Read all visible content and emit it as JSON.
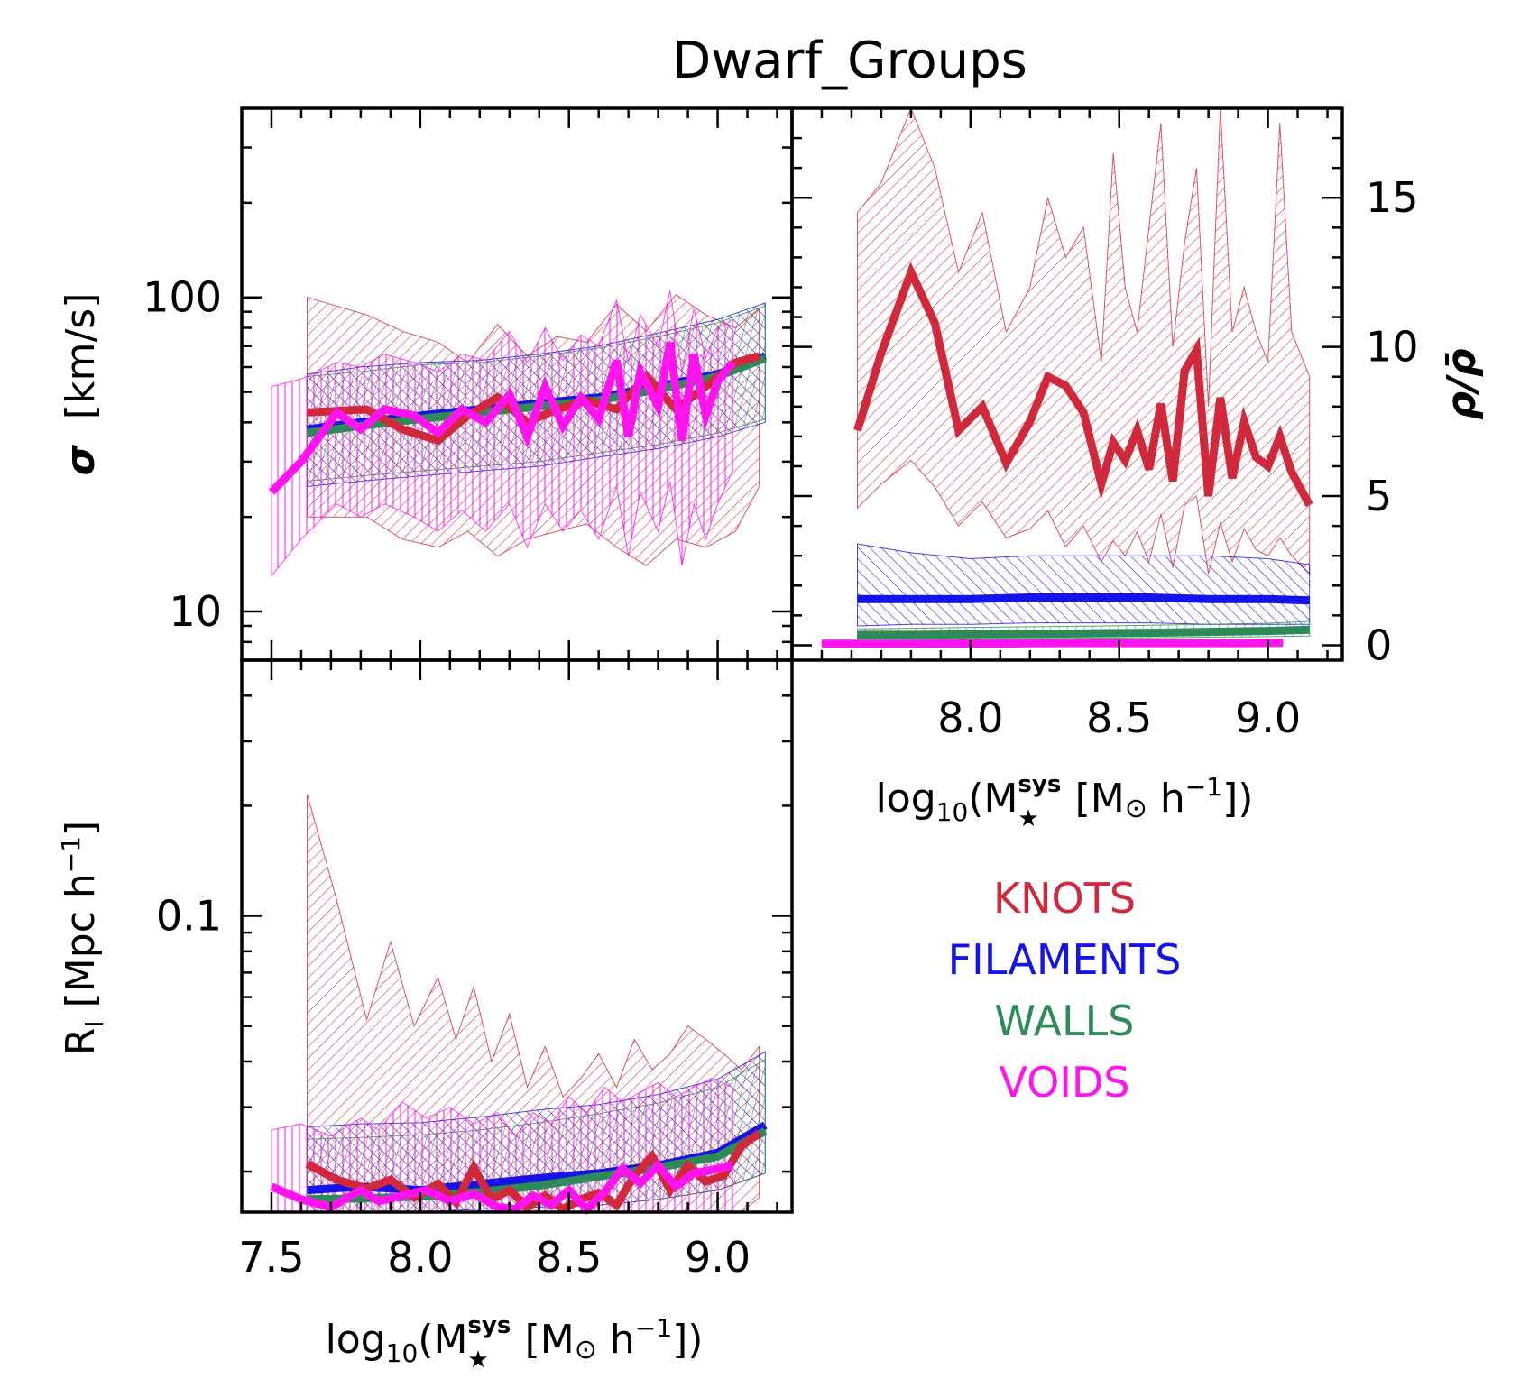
{
  "figure": {
    "title": "Dwarf_Groups",
    "x_axis_label": {
      "main": "log",
      "sub": "10",
      "open": "(M",
      "sup": "sys",
      "star": "★",
      "unit_open": "[M",
      "sun": "⊙",
      "unit_h": " h",
      "unit_exp": "−1",
      "close": "])"
    },
    "y_label_sigma": {
      "symbol": "σ",
      "unit": "[km/s]"
    },
    "y_label_rho": "ρ/ρ̄",
    "y_label_radius": {
      "main": "R",
      "sub": "I",
      "unit": "[Mpc h",
      "exp": "−1",
      "close": "]"
    }
  },
  "legend": [
    {
      "key": "knots",
      "label": "KNOTS",
      "color": "#d2283c"
    },
    {
      "key": "filaments",
      "label": "FILAMENTS",
      "color": "#1414e6"
    },
    {
      "key": "walls",
      "label": "WALLS",
      "color": "#2e8b57"
    },
    {
      "key": "voids",
      "label": "VOIDS",
      "color": "#ff14f0"
    }
  ],
  "chart_data": [
    {
      "id": "sigma",
      "type": "line",
      "yscale": "log",
      "xlim": [
        7.4,
        9.25
      ],
      "ylim": [
        7.0,
        400
      ],
      "yticks": [
        {
          "v": 10,
          "label": "10"
        },
        {
          "v": 100,
          "label": "100"
        }
      ],
      "xticks": [
        7.5,
        8.0,
        8.5,
        9.0
      ],
      "xlabel": "log10(M★sys [M⊙ h−1])",
      "ylabel": "σ [km/s]",
      "series": [
        {
          "name": "KNOTS",
          "x": [
            7.62,
            7.82,
            7.94,
            8.06,
            8.16,
            8.26,
            8.36,
            8.46,
            8.56,
            8.66,
            8.76,
            8.86,
            8.96,
            9.06,
            9.14
          ],
          "y": [
            43,
            44,
            38,
            35,
            42,
            48,
            40,
            44,
            47,
            44,
            56,
            44,
            52,
            62,
            65
          ],
          "lo": [
            20,
            20,
            17,
            16,
            18,
            15,
            17,
            18,
            19,
            16,
            14,
            17,
            16,
            18,
            25
          ],
          "hi": [
            100,
            88,
            78,
            72,
            62,
            82,
            65,
            75,
            72,
            95,
            78,
            102,
            88,
            80,
            92
          ]
        },
        {
          "name": "FILAMENTS",
          "x": [
            7.62,
            7.8,
            8.0,
            8.2,
            8.4,
            8.6,
            8.8,
            9.0,
            9.16
          ],
          "y": [
            38,
            40,
            42,
            44,
            46,
            48,
            52,
            57,
            65
          ],
          "lo": [
            25,
            26,
            27,
            28,
            29,
            31,
            33,
            36,
            40
          ],
          "hi": [
            57,
            60,
            62,
            63,
            66,
            70,
            77,
            85,
            96
          ]
        },
        {
          "name": "WALLS",
          "x": [
            7.62,
            7.8,
            8.0,
            8.2,
            8.4,
            8.6,
            8.8,
            9.0,
            9.16
          ],
          "y": [
            37,
            39,
            41,
            43,
            45,
            47,
            51,
            56,
            64
          ],
          "lo": [
            26,
            27,
            28,
            29,
            30,
            32,
            34,
            37,
            41
          ],
          "hi": [
            56,
            58,
            61,
            62,
            65,
            69,
            75,
            83,
            94
          ]
        },
        {
          "name": "VOIDS",
          "x": [
            7.5,
            7.6,
            7.72,
            7.8,
            7.88,
            7.98,
            8.06,
            8.14,
            8.22,
            8.3,
            8.36,
            8.42,
            8.48,
            8.54,
            8.6,
            8.66,
            8.7,
            8.74,
            8.8,
            8.84,
            8.88,
            8.92,
            8.96,
            9.0,
            9.05
          ],
          "y": [
            24,
            30,
            43,
            38,
            44,
            42,
            37,
            44,
            40,
            49,
            36,
            52,
            39,
            48,
            41,
            63,
            36,
            58,
            45,
            72,
            35,
            66,
            42,
            54,
            62
          ],
          "lo": [
            13,
            17,
            22,
            20,
            22,
            20,
            18,
            21,
            18,
            22,
            16,
            22,
            18,
            21,
            17,
            25,
            15,
            24,
            18,
            26,
            14,
            22,
            17,
            22,
            28
          ],
          "hi": [
            52,
            55,
            62,
            60,
            66,
            62,
            58,
            66,
            63,
            78,
            62,
            80,
            63,
            76,
            70,
            98,
            62,
            88,
            70,
            105,
            58,
            92,
            64,
            80,
            85
          ]
        }
      ]
    },
    {
      "id": "density",
      "type": "line",
      "yscale": "linear",
      "xlim": [
        7.4,
        9.25
      ],
      "ylim": [
        -0.5,
        18
      ],
      "yticks": [
        {
          "v": 0,
          "label": "0"
        },
        {
          "v": 5,
          "label": "5"
        },
        {
          "v": 10,
          "label": "10"
        },
        {
          "v": 15,
          "label": "15"
        }
      ],
      "xticks": [
        {
          "v": 8.0,
          "label": "8.0"
        },
        {
          "v": 8.5,
          "label": "8.5"
        },
        {
          "v": 9.0,
          "label": "9.0"
        }
      ],
      "xlabel": "log10(M★sys [M⊙ h−1])",
      "ylabel": "ρ/ρ̄",
      "series": [
        {
          "name": "KNOTS",
          "x": [
            7.62,
            7.7,
            7.8,
            7.88,
            7.96,
            8.04,
            8.12,
            8.2,
            8.26,
            8.32,
            8.38,
            8.44,
            8.48,
            8.52,
            8.56,
            8.6,
            8.64,
            8.68,
            8.72,
            8.76,
            8.8,
            8.84,
            8.88,
            8.92,
            8.96,
            9.0,
            9.04,
            9.08,
            9.14
          ],
          "y": [
            7.2,
            9.8,
            12.5,
            10.8,
            7.2,
            8.0,
            6.1,
            7.5,
            9.0,
            8.7,
            7.8,
            5.4,
            6.8,
            6.2,
            7.2,
            5.9,
            8.1,
            5.5,
            9.2,
            9.9,
            5.0,
            8.3,
            5.6,
            7.5,
            6.3,
            6.0,
            7.0,
            5.8,
            4.7
          ],
          "lo": [
            4.6,
            5.4,
            6.2,
            5.3,
            4.0,
            4.8,
            3.6,
            3.9,
            4.5,
            3.3,
            4.0,
            2.8,
            3.5,
            3.0,
            3.8,
            2.8,
            4.4,
            2.6,
            4.7,
            5.0,
            2.4,
            4.1,
            2.8,
            3.9,
            3.2,
            3.0,
            3.6,
            3.0,
            2.4
          ],
          "hi": [
            14.5,
            15.5,
            18.0,
            16.0,
            12.5,
            14.5,
            10.5,
            12.0,
            15.0,
            13.0,
            14.0,
            9.5,
            16.5,
            12.0,
            10.5,
            14.0,
            17.5,
            10.0,
            13.5,
            16.0,
            8.0,
            18.0,
            10.5,
            12.0,
            10.5,
            9.5,
            17.5,
            10.5,
            9.0
          ]
        },
        {
          "name": "FILAMENTS",
          "x": [
            7.62,
            7.8,
            8.0,
            8.2,
            8.4,
            8.6,
            8.8,
            9.0,
            9.14
          ],
          "y": [
            1.55,
            1.55,
            1.55,
            1.6,
            1.6,
            1.6,
            1.55,
            1.55,
            1.5
          ],
          "lo": [
            0.65,
            0.7,
            0.7,
            0.75,
            0.75,
            0.75,
            0.7,
            0.7,
            0.7
          ],
          "hi": [
            3.4,
            3.1,
            2.9,
            3.0,
            3.0,
            3.0,
            3.0,
            2.9,
            2.7
          ]
        },
        {
          "name": "WALLS",
          "x": [
            7.62,
            7.8,
            8.0,
            8.2,
            8.4,
            8.6,
            8.8,
            9.0,
            9.14
          ],
          "y": [
            0.35,
            0.35,
            0.37,
            0.38,
            0.4,
            0.42,
            0.45,
            0.48,
            0.52
          ],
          "lo": [
            0.2,
            0.2,
            0.22,
            0.22,
            0.24,
            0.25,
            0.27,
            0.29,
            0.31
          ],
          "hi": [
            0.55,
            0.57,
            0.6,
            0.62,
            0.64,
            0.67,
            0.7,
            0.74,
            0.8
          ]
        },
        {
          "name": "VOIDS",
          "x": [
            7.5,
            7.7,
            7.9,
            8.1,
            8.3,
            8.5,
            8.7,
            8.9,
            9.05
          ],
          "y": [
            0.05,
            0.05,
            0.06,
            0.06,
            0.07,
            0.07,
            0.07,
            0.07,
            0.08
          ],
          "lo": [
            0.02,
            0.02,
            0.02,
            0.03,
            0.03,
            0.03,
            0.03,
            0.03,
            0.04
          ],
          "hi": [
            0.09,
            0.09,
            0.1,
            0.1,
            0.11,
            0.11,
            0.11,
            0.12,
            0.12
          ]
        }
      ]
    },
    {
      "id": "radius",
      "type": "line",
      "yscale": "log",
      "xlim": [
        7.4,
        9.25
      ],
      "ylim": [
        0.0155,
        0.5
      ],
      "yticks": [
        {
          "v": 0.1,
          "label": "0.1"
        }
      ],
      "xticks": [
        {
          "v": 7.5,
          "label": "7.5"
        },
        {
          "v": 8.0,
          "label": "8.0"
        },
        {
          "v": 8.5,
          "label": "8.5"
        },
        {
          "v": 9.0,
          "label": "9.0"
        }
      ],
      "xlabel": "log10(M★sys [M⊙ h−1])",
      "ylabel": "RI [Mpc h−1]",
      "series": [
        {
          "name": "KNOTS",
          "x": [
            7.62,
            7.72,
            7.82,
            7.9,
            7.98,
            8.06,
            8.12,
            8.18,
            8.24,
            8.3,
            8.36,
            8.42,
            8.48,
            8.54,
            8.6,
            8.66,
            8.72,
            8.78,
            8.84,
            8.9,
            8.96,
            9.02,
            9.08,
            9.14
          ],
          "y": [
            0.021,
            0.019,
            0.018,
            0.019,
            0.017,
            0.0185,
            0.0165,
            0.0205,
            0.0168,
            0.0178,
            0.016,
            0.0172,
            0.0158,
            0.0168,
            0.0175,
            0.0162,
            0.0195,
            0.022,
            0.0178,
            0.0208,
            0.0188,
            0.0195,
            0.0235,
            0.0255
          ],
          "lo": [
            0.0155,
            0.0155,
            0.0155,
            0.0155,
            0.0155,
            0.0155,
            0.0155,
            0.0155,
            0.0155,
            0.0155,
            0.0155,
            0.0155,
            0.0155,
            0.0155,
            0.0155,
            0.0155,
            0.0155,
            0.0155,
            0.0155,
            0.0155,
            0.0155,
            0.0155,
            0.0155,
            0.017
          ],
          "hi": [
            0.215,
            0.11,
            0.052,
            0.085,
            0.05,
            0.068,
            0.046,
            0.064,
            0.04,
            0.054,
            0.034,
            0.044,
            0.032,
            0.036,
            0.042,
            0.034,
            0.046,
            0.038,
            0.042,
            0.05,
            0.046,
            0.042,
            0.038,
            0.044
          ]
        },
        {
          "name": "FILAMENTS",
          "x": [
            7.62,
            7.8,
            8.0,
            8.2,
            8.4,
            8.6,
            8.8,
            9.0,
            9.16
          ],
          "y": [
            0.0178,
            0.0182,
            0.0178,
            0.0185,
            0.0192,
            0.0198,
            0.0208,
            0.0225,
            0.0268
          ],
          "lo": [
            0.0155,
            0.0155,
            0.0155,
            0.0158,
            0.016,
            0.0162,
            0.0168,
            0.0178,
            0.0198
          ],
          "hi": [
            0.0265,
            0.027,
            0.0272,
            0.0282,
            0.0295,
            0.0305,
            0.0325,
            0.0358,
            0.0425
          ]
        },
        {
          "name": "WALLS",
          "x": [
            7.62,
            7.8,
            8.0,
            8.2,
            8.4,
            8.6,
            8.8,
            9.0,
            9.16
          ],
          "y": [
            0.0168,
            0.0169,
            0.0171,
            0.0176,
            0.0183,
            0.0194,
            0.0205,
            0.022,
            0.0258
          ],
          "lo": [
            0.0155,
            0.0155,
            0.0155,
            0.0156,
            0.0158,
            0.0162,
            0.0168,
            0.0178,
            0.0198
          ],
          "hi": [
            0.0245,
            0.0248,
            0.0252,
            0.026,
            0.0272,
            0.0288,
            0.0308,
            0.034,
            0.0405
          ]
        },
        {
          "name": "VOIDS",
          "x": [
            7.5,
            7.6,
            7.7,
            7.8,
            7.86,
            7.94,
            8.02,
            8.1,
            8.18,
            8.26,
            8.32,
            8.38,
            8.44,
            8.5,
            8.56,
            8.62,
            8.68,
            8.74,
            8.8,
            8.86,
            8.92,
            8.98,
            9.05
          ],
          "y": [
            0.0182,
            0.0168,
            0.016,
            0.0178,
            0.0166,
            0.0172,
            0.0178,
            0.0166,
            0.0174,
            0.016,
            0.0158,
            0.0172,
            0.0162,
            0.0178,
            0.0158,
            0.0176,
            0.0204,
            0.0186,
            0.0208,
            0.0182,
            0.0198,
            0.0202,
            0.0208
          ],
          "lo": [
            0.0155,
            0.0155,
            0.0155,
            0.0155,
            0.0155,
            0.0155,
            0.0155,
            0.0155,
            0.0155,
            0.0155,
            0.0155,
            0.0155,
            0.0155,
            0.0155,
            0.0155,
            0.0155,
            0.0155,
            0.0155,
            0.0155,
            0.0155,
            0.0155,
            0.0155,
            0.0155
          ],
          "hi": [
            0.026,
            0.027,
            0.025,
            0.028,
            0.026,
            0.031,
            0.028,
            0.03,
            0.027,
            0.029,
            0.025,
            0.029,
            0.027,
            0.032,
            0.029,
            0.034,
            0.031,
            0.033,
            0.035,
            0.032,
            0.034,
            0.036,
            0.034
          ]
        }
      ]
    }
  ]
}
